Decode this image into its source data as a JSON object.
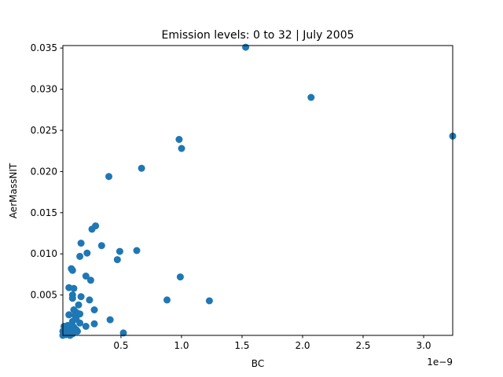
{
  "chart_data": {
    "type": "scatter",
    "title": "Emission levels: 0 to 32 | July 2005",
    "xlabel": "BC",
    "ylabel": "AerMassNIT",
    "x_offset_text": "1e−9",
    "xlim": [
      2e-11,
      3.24e-09
    ],
    "ylim": [
      0.0001,
      0.0353
    ],
    "x_ticks": [
      {
        "value": 5e-10,
        "label": "0.5"
      },
      {
        "value": 1e-09,
        "label": "1.0"
      },
      {
        "value": 1.5e-09,
        "label": "1.5"
      },
      {
        "value": 2e-09,
        "label": "2.0"
      },
      {
        "value": 2.5e-09,
        "label": "2.5"
      },
      {
        "value": 3e-09,
        "label": "3.0"
      }
    ],
    "y_ticks": [
      {
        "value": 0.005,
        "label": "0.005"
      },
      {
        "value": 0.01,
        "label": "0.010"
      },
      {
        "value": 0.015,
        "label": "0.015"
      },
      {
        "value": 0.02,
        "label": "0.020"
      },
      {
        "value": 0.025,
        "label": "0.025"
      },
      {
        "value": 0.03,
        "label": "0.030"
      },
      {
        "value": 0.035,
        "label": "0.035"
      }
    ],
    "marker_color": "#1f77b4",
    "grid": false,
    "series": [
      {
        "x": [
          1.53e-09,
          2.07e-09,
          3.24e-09,
          9.8e-10,
          1e-09,
          6.7e-10,
          4e-10,
          2.9e-10,
          2.6e-10,
          1.7e-10,
          3.4e-10,
          2.2e-10,
          1.6e-10,
          4.9e-10,
          6.3e-10,
          4.7e-10,
          9e-11,
          1e-10,
          2.1e-10,
          2.5e-10,
          9.9e-10,
          7e-11,
          1.1e-10,
          1e-10,
          1e-10,
          1.7e-10,
          2.4e-10,
          8.8e-10,
          1.23e-09,
          1.5e-10,
          1.1e-10,
          2.8e-10,
          1.3e-10,
          1.6e-10,
          7e-11,
          1.2e-10,
          1.3e-10,
          1e-10,
          1.6e-10,
          2.8e-10,
          4.1e-10,
          2.1e-10,
          3e-11,
          6e-11,
          1.1e-10,
          5.2e-10,
          1.3e-10,
          5e-11,
          8e-11,
          4e-11,
          9e-11,
          2e-11,
          6e-11,
          1.2e-10,
          3e-11,
          8e-11,
          1.4e-10,
          1e-10,
          2e-11,
          5e-11
        ],
        "y": [
          0.0351,
          0.029,
          0.0243,
          0.0239,
          0.0228,
          0.0204,
          0.0194,
          0.0134,
          0.013,
          0.0113,
          0.011,
          0.0101,
          0.0097,
          0.0103,
          0.0104,
          0.0093,
          0.0082,
          0.008,
          0.0073,
          0.0068,
          0.0072,
          0.0059,
          0.0058,
          0.005,
          0.0046,
          0.0048,
          0.0044,
          0.0044,
          0.0043,
          0.0038,
          0.0032,
          0.0032,
          0.0029,
          0.0027,
          0.0026,
          0.0025,
          0.0021,
          0.0018,
          0.0016,
          0.0015,
          0.002,
          0.0012,
          0.0012,
          0.0013,
          0.0011,
          0.0004,
          0.0008,
          0.0009,
          0.0007,
          0.0005,
          0.0004,
          0.0006,
          0.0003,
          0.0006,
          0.0002,
          0.0001,
          0.0006,
          0.0003,
          0.0001,
          0.0002
        ]
      }
    ]
  }
}
